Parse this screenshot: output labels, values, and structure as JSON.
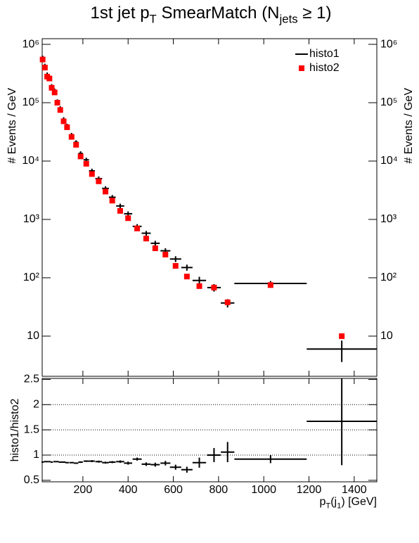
{
  "chart_data": [
    {
      "type": "errorbar",
      "title": [
        "1st jet p",
        "T",
        " SmearMatch (N",
        "jets",
        " ≥ 1)"
      ],
      "ylabel": "# Events / GeV",
      "log_y": true,
      "legend": "top-right",
      "xlim": [
        20,
        1500
      ],
      "ylim": [
        2.05,
        1250000
      ],
      "yticks": [
        10,
        {
          "value": 100,
          "label": "10²"
        },
        {
          "value": 1000,
          "label": "10³"
        },
        {
          "value": 10000,
          "label": "10⁴"
        },
        {
          "value": 100000,
          "label": "10⁵"
        },
        {
          "value": 1000000,
          "label": "10⁶"
        }
      ],
      "x": [
        22,
        32,
        42,
        52,
        62,
        75,
        87,
        100,
        115,
        130,
        150,
        170,
        190,
        215,
        240,
        270,
        300,
        330,
        365,
        400,
        440,
        480,
        520,
        565,
        610,
        660,
        715,
        780,
        840,
        1030,
        1345
      ],
      "xerr": [
        5,
        5,
        5,
        5,
        5,
        6,
        6,
        7,
        8,
        8,
        10,
        10,
        10,
        12,
        13,
        15,
        15,
        15,
        18,
        18,
        20,
        20,
        20,
        22,
        25,
        25,
        30,
        30,
        30,
        160,
        155
      ],
      "series": [
        {
          "name": "histo1",
          "color": "#000000",
          "marker": "cross",
          "values": [
            580000,
            420000,
            300000,
            270000,
            190000,
            160000,
            105000,
            80000,
            52000,
            40000,
            28000,
            21000,
            13500,
            10500,
            6800,
            5000,
            3400,
            2400,
            1700,
            1250,
            760,
            580,
            390,
            290,
            210,
            150,
            90,
            68,
            37,
            80,
            6
          ],
          "errors": [
            60000,
            45000,
            30000,
            25000,
            18000,
            15000,
            9000,
            7000,
            4500,
            3500,
            2400,
            1800,
            1200,
            900,
            600,
            450,
            300,
            220,
            160,
            120,
            70,
            55,
            40,
            30,
            24,
            18,
            14,
            10,
            6,
            8,
            2.4
          ]
        },
        {
          "name": "histo2",
          "color": "#ff0000",
          "marker": "square",
          "values": [
            550000,
            400000,
            280000,
            260000,
            180000,
            150000,
            100000,
            75000,
            48000,
            38000,
            26000,
            19000,
            12000,
            9000,
            6000,
            4500,
            3000,
            2100,
            1400,
            1050,
            700,
            470,
            320,
            250,
            160,
            105,
            72,
            68,
            38,
            75,
            10
          ]
        }
      ]
    },
    {
      "type": "errorbar",
      "ylabel": "histo1/histo2",
      "xlabel": [
        "p",
        "T",
        "(j",
        "1",
        ") [GeV]"
      ],
      "grid": true,
      "xlim": [
        20,
        1500
      ],
      "ylim": [
        0.47,
        2.52
      ],
      "xticks": [
        200,
        400,
        600,
        800,
        1000,
        1200,
        1400
      ],
      "yticks": [
        0.5,
        1,
        1.5,
        2,
        2.5
      ],
      "x": [
        22,
        32,
        42,
        52,
        62,
        75,
        87,
        100,
        115,
        130,
        150,
        170,
        190,
        215,
        240,
        270,
        300,
        330,
        365,
        400,
        440,
        480,
        520,
        565,
        610,
        660,
        715,
        780,
        840,
        1030,
        1345
      ],
      "xerr": [
        5,
        5,
        5,
        5,
        5,
        6,
        6,
        7,
        8,
        8,
        10,
        10,
        10,
        12,
        13,
        15,
        15,
        15,
        18,
        18,
        20,
        20,
        20,
        22,
        25,
        25,
        30,
        30,
        30,
        160,
        155
      ],
      "series": [
        {
          "color": "#000000",
          "marker": "cross",
          "values": [
            0.86,
            0.87,
            0.87,
            0.87,
            0.86,
            0.87,
            0.87,
            0.86,
            0.86,
            0.85,
            0.85,
            0.84,
            0.86,
            0.88,
            0.88,
            0.87,
            0.85,
            0.86,
            0.87,
            0.84,
            0.92,
            0.82,
            0.81,
            0.84,
            0.76,
            0.71,
            0.85,
            1.0,
            1.06,
            0.92,
            1.67
          ],
          "errors": [
            0.01,
            0.01,
            0.01,
            0.01,
            0.01,
            0.01,
            0.01,
            0.01,
            0.01,
            0.01,
            0.01,
            0.01,
            0.015,
            0.015,
            0.02,
            0.02,
            0.02,
            0.02,
            0.025,
            0.03,
            0.03,
            0.035,
            0.04,
            0.045,
            0.05,
            0.06,
            0.1,
            0.14,
            0.2,
            0.08,
            0.87
          ]
        }
      ]
    }
  ]
}
